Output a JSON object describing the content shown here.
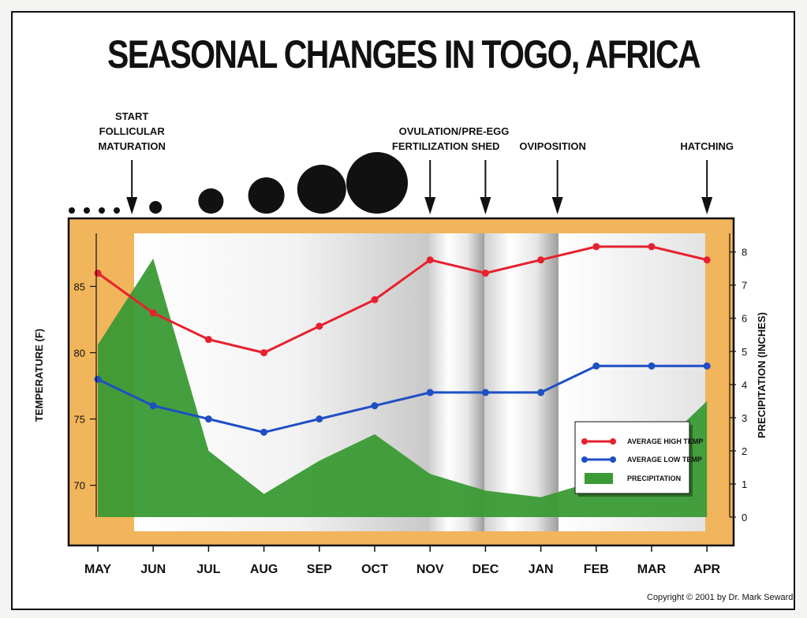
{
  "title": "SEASONAL CHANGES IN TOGO, AFRICA",
  "copyright": "Copyright © 2001 by Dr. Mark Seward",
  "events": [
    {
      "label_lines": [
        "START",
        "FOLLICULAR",
        "MATURATION"
      ],
      "month_pos": 1
    },
    {
      "label_lines": [
        "OVULATION/",
        "FERTILIZATION"
      ],
      "month_pos": 6
    },
    {
      "label_lines": [
        "PRE-EGG",
        "SHED"
      ],
      "month_pos": 7
    },
    {
      "label_lines": [
        "OVIPOSITION"
      ],
      "month_pos": 8.3
    },
    {
      "label_lines": [
        "HATCHING"
      ],
      "month_pos": 11
    }
  ],
  "follicle_growth": {
    "small_dots_count": 4,
    "circle_months": [
      "JUN",
      "JUL",
      "AUG",
      "SEP",
      "OCT"
    ]
  },
  "colors": {
    "high_temp": "#e8202e",
    "low_temp": "#1f4fc4",
    "precipitation": "#3a9a34",
    "plot_border": "#f1b55c"
  },
  "chart_data": {
    "type": "line",
    "title": "SEASONAL CHANGES IN TOGO, AFRICA",
    "categories": [
      "MAY",
      "JUN",
      "JUL",
      "AUG",
      "SEP",
      "OCT",
      "NOV",
      "DEC",
      "JAN",
      "FEB",
      "MAR",
      "APR"
    ],
    "ylabel": "TEMPERATURE (F)",
    "y2label": "PRECIPITATION (INCHES)",
    "y_ticks": [
      70,
      75,
      80,
      85
    ],
    "y2_ticks": [
      0,
      1,
      2,
      3,
      4,
      5,
      6,
      7,
      8
    ],
    "ylim": [
      67.6,
      89.6
    ],
    "y2lim": [
      0,
      8.8
    ],
    "series": [
      {
        "name": "AVERAGE HIGH TEMP",
        "axis": "left",
        "values": [
          86,
          83,
          81,
          80,
          82,
          84,
          87,
          86,
          87,
          88,
          88,
          87
        ]
      },
      {
        "name": "AVERAGE LOW TEMP",
        "axis": "left",
        "values": [
          78,
          76,
          75,
          74,
          75,
          76,
          77,
          77,
          77,
          79,
          79,
          79
        ]
      },
      {
        "name": "PRECIPITATION",
        "axis": "right",
        "type": "area",
        "values": [
          5.2,
          7.8,
          2.0,
          0.7,
          1.7,
          2.5,
          1.3,
          0.8,
          0.6,
          1.1,
          1.9,
          3.5
        ]
      }
    ],
    "legend_position": "bottom-right",
    "grid": false
  }
}
